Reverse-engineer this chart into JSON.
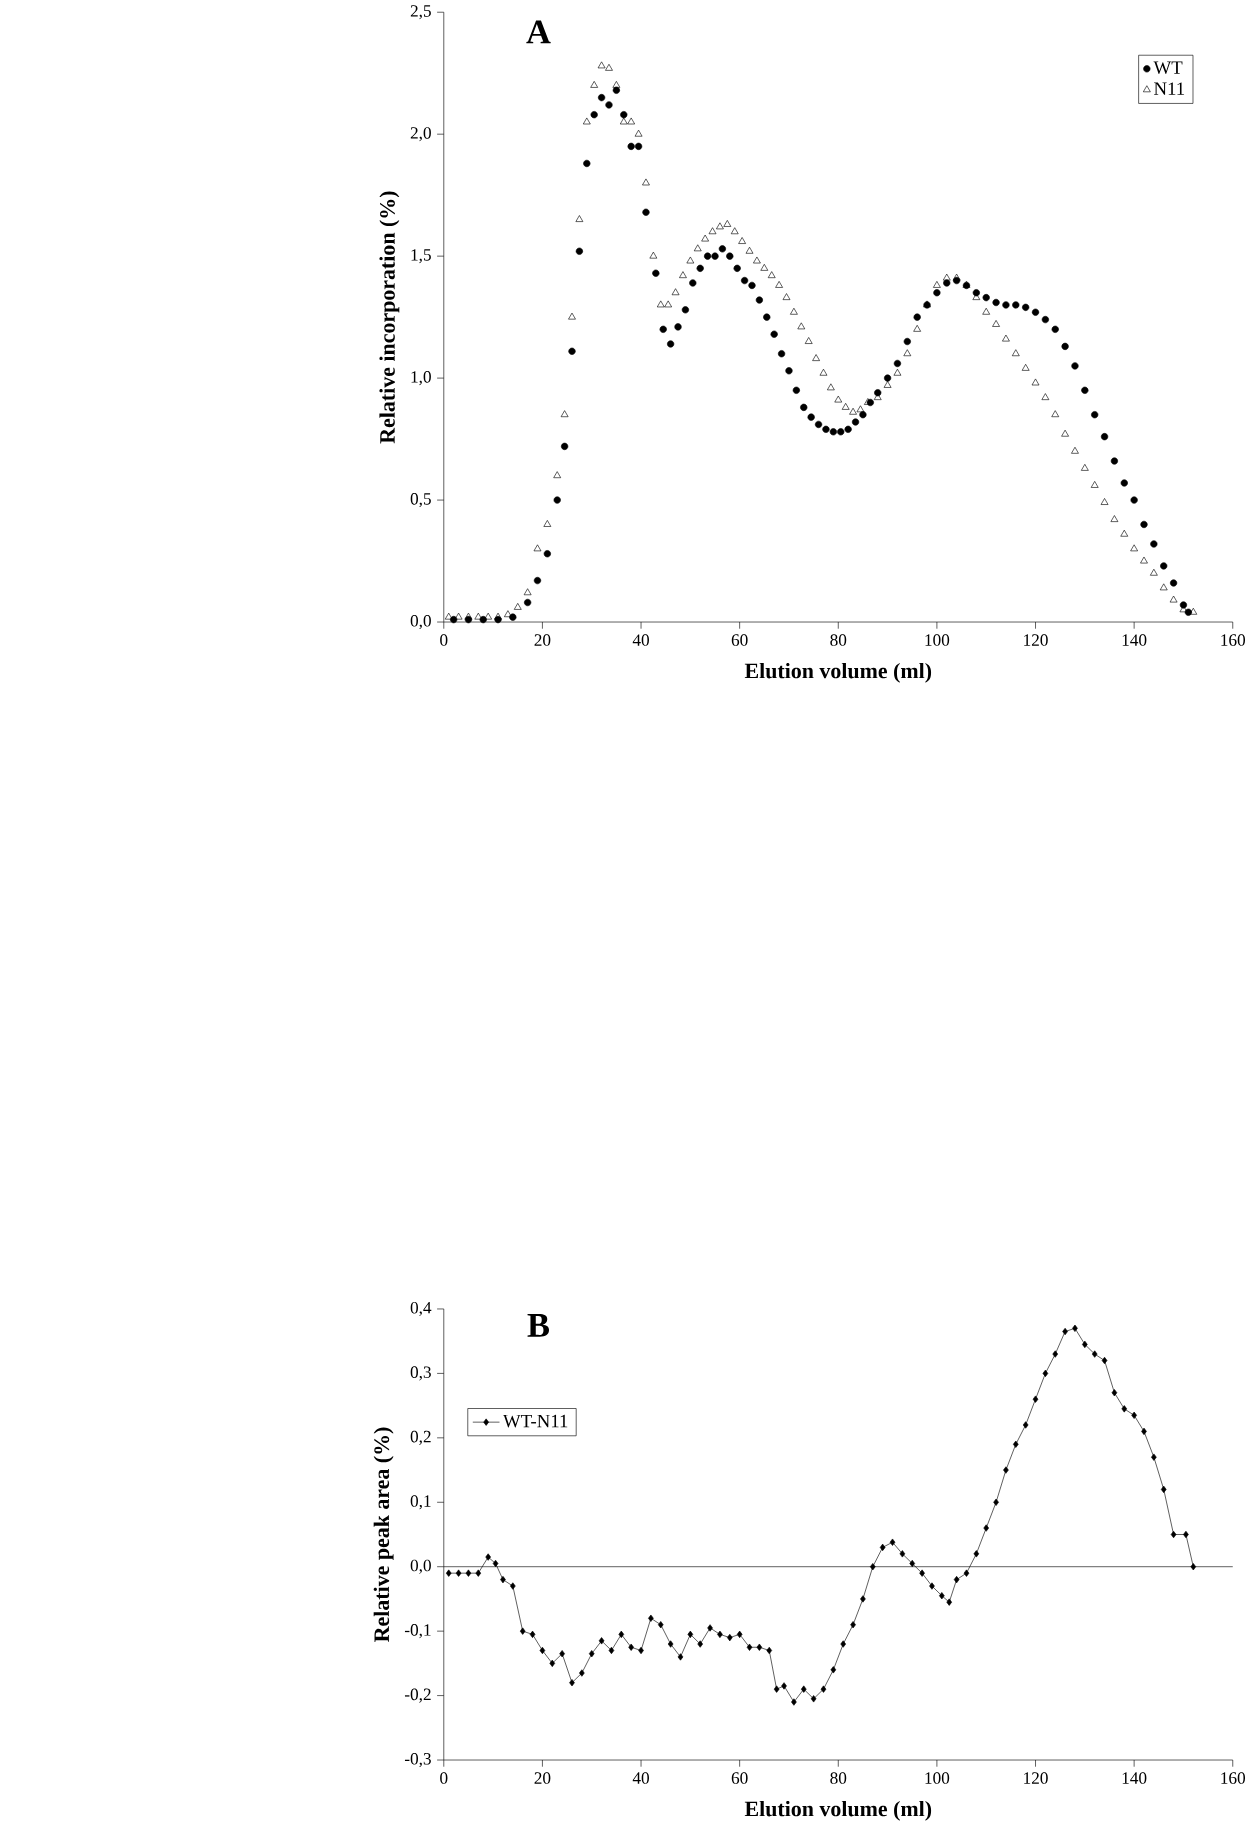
{
  "chart_data": [
    {
      "type": "scatter",
      "title": "A",
      "xlabel": "Elution volume (ml)",
      "ylabel": "Relative incorporation (%)",
      "xlim": [
        0,
        160
      ],
      "xticks": [
        0,
        20,
        40,
        60,
        80,
        100,
        120,
        140,
        160
      ],
      "ylim": [
        0,
        2.5
      ],
      "yticks": [
        {
          "value": 0,
          "label": "0,0"
        },
        {
          "value": 0.5,
          "label": "0,5"
        },
        {
          "value": 1,
          "label": "1,0"
        },
        {
          "value": 1.5,
          "label": "1,5"
        },
        {
          "value": 2,
          "label": "2,0"
        },
        {
          "value": 2.5,
          "label": "2,5"
        }
      ],
      "legend": "top right",
      "series": [
        {
          "name": "WT",
          "color": "#000000",
          "marker": "circle",
          "x": [
            2,
            5,
            8,
            11,
            14,
            17,
            19,
            21,
            23,
            24.5,
            26,
            27.5,
            29,
            30.5,
            32,
            33.5,
            35,
            36.5,
            38,
            39.5,
            41,
            43,
            44.5,
            46,
            47.5,
            49,
            50.5,
            52,
            53.5,
            55,
            56.5,
            58,
            59.5,
            61,
            62.5,
            64,
            65.5,
            67,
            68.5,
            70,
            71.5,
            73,
            74.5,
            76,
            77.5,
            79,
            80.5,
            82,
            83.5,
            85,
            86.5,
            88,
            90,
            92,
            94,
            96,
            98,
            100,
            102,
            104,
            106,
            108,
            110,
            112,
            114,
            116,
            118,
            120,
            122,
            124,
            126,
            128,
            130,
            132,
            134,
            136,
            138,
            140,
            142,
            144,
            146,
            148,
            150,
            151
          ],
          "values": [
            0.01,
            0.01,
            0.01,
            0.01,
            0.02,
            0.08,
            0.17,
            0.28,
            0.5,
            0.72,
            1.11,
            1.52,
            1.88,
            2.08,
            2.15,
            2.12,
            2.18,
            2.08,
            1.95,
            1.95,
            1.68,
            1.43,
            1.2,
            1.14,
            1.21,
            1.28,
            1.39,
            1.45,
            1.5,
            1.5,
            1.53,
            1.5,
            1.45,
            1.4,
            1.38,
            1.32,
            1.25,
            1.18,
            1.1,
            1.03,
            0.95,
            0.88,
            0.84,
            0.81,
            0.79,
            0.78,
            0.78,
            0.79,
            0.82,
            0.85,
            0.9,
            0.94,
            1.0,
            1.06,
            1.15,
            1.25,
            1.3,
            1.35,
            1.39,
            1.4,
            1.38,
            1.35,
            1.33,
            1.31,
            1.3,
            1.3,
            1.29,
            1.27,
            1.24,
            1.2,
            1.13,
            1.05,
            0.95,
            0.85,
            0.76,
            0.66,
            0.57,
            0.5,
            0.4,
            0.32,
            0.23,
            0.16,
            0.07,
            0.04
          ]
        },
        {
          "name": "N11",
          "color": "#000000",
          "marker": "triangle",
          "x": [
            1,
            3,
            5,
            7,
            9,
            11,
            13,
            15,
            17,
            19,
            21,
            23,
            24.5,
            26,
            27.5,
            29,
            30.5,
            32,
            33.5,
            35,
            36.5,
            38,
            39.5,
            41,
            42.5,
            44,
            45.5,
            47,
            48.5,
            50,
            51.5,
            53,
            54.5,
            56,
            57.5,
            59,
            60.5,
            62,
            63.5,
            65,
            66.5,
            68,
            69.5,
            71,
            72.5,
            74,
            75.5,
            77,
            78.5,
            80,
            81.5,
            83,
            84.5,
            86,
            88,
            90,
            92,
            94,
            96,
            98,
            100,
            102,
            104,
            106,
            108,
            110,
            112,
            114,
            116,
            118,
            120,
            122,
            124,
            126,
            128,
            130,
            132,
            134,
            136,
            138,
            140,
            142,
            144,
            146,
            148,
            150,
            152
          ],
          "values": [
            0.02,
            0.02,
            0.02,
            0.02,
            0.02,
            0.02,
            0.03,
            0.06,
            0.12,
            0.3,
            0.4,
            0.6,
            0.85,
            1.25,
            1.65,
            2.05,
            2.2,
            2.28,
            2.27,
            2.2,
            2.05,
            2.05,
            2.0,
            1.8,
            1.5,
            1.3,
            1.3,
            1.35,
            1.42,
            1.48,
            1.53,
            1.57,
            1.6,
            1.62,
            1.63,
            1.6,
            1.56,
            1.52,
            1.48,
            1.45,
            1.42,
            1.38,
            1.33,
            1.27,
            1.21,
            1.15,
            1.08,
            1.02,
            0.96,
            0.91,
            0.88,
            0.86,
            0.87,
            0.9,
            0.92,
            0.97,
            1.02,
            1.1,
            1.2,
            1.3,
            1.38,
            1.41,
            1.41,
            1.38,
            1.33,
            1.27,
            1.22,
            1.16,
            1.1,
            1.04,
            0.98,
            0.92,
            0.85,
            0.77,
            0.7,
            0.63,
            0.56,
            0.49,
            0.42,
            0.36,
            0.3,
            0.25,
            0.2,
            0.14,
            0.09,
            0.05,
            0.04
          ]
        }
      ]
    },
    {
      "type": "line",
      "title": "B",
      "xlabel": "Elution volume (ml)",
      "ylabel": "Relative peak area (%)",
      "xlim": [
        0,
        160
      ],
      "xticks": [
        0,
        20,
        40,
        60,
        80,
        100,
        120,
        140,
        160
      ],
      "ylim": [
        -0.3,
        0.4
      ],
      "yticks": [
        {
          "value": -0.3,
          "label": "-0,3"
        },
        {
          "value": -0.2,
          "label": "-0,2"
        },
        {
          "value": -0.1,
          "label": "-0,1"
        },
        {
          "value": 0,
          "label": "0,0"
        },
        {
          "value": 0.1,
          "label": "0,1"
        },
        {
          "value": 0.2,
          "label": "0,2"
        },
        {
          "value": 0.3,
          "label": "0,3"
        },
        {
          "value": 0.4,
          "label": "0,4"
        }
      ],
      "legend": "top left",
      "marker": "diamond",
      "line_style": "solid",
      "ref_lines": [
        {
          "axis": "y",
          "value": 0,
          "color": "#000000"
        }
      ],
      "series": [
        {
          "name": "WT-N11",
          "color": "#000000",
          "x": [
            1,
            3,
            5,
            7,
            9,
            10.5,
            12,
            14,
            16,
            18,
            20,
            22,
            24,
            26,
            28,
            30,
            32,
            34,
            36,
            38,
            40,
            42,
            44,
            46,
            48,
            50,
            52,
            54,
            56,
            58,
            60,
            62,
            64,
            66,
            67.5,
            69,
            71,
            73,
            75,
            77,
            79,
            81,
            83,
            85,
            87,
            89,
            91,
            93,
            95,
            97,
            99,
            101,
            102.5,
            104,
            106,
            108,
            110,
            112,
            114,
            116,
            118,
            120,
            122,
            124,
            126,
            128,
            130,
            132,
            134,
            136,
            138,
            140,
            142,
            144,
            146,
            148,
            150.5,
            152
          ],
          "values": [
            -0.01,
            -0.01,
            -0.01,
            -0.01,
            0.015,
            0.005,
            -0.02,
            -0.03,
            -0.1,
            -0.105,
            -0.13,
            -0.15,
            -0.135,
            -0.18,
            -0.165,
            -0.135,
            -0.115,
            -0.13,
            -0.105,
            -0.125,
            -0.13,
            -0.08,
            -0.09,
            -0.12,
            -0.14,
            -0.105,
            -0.12,
            -0.095,
            -0.105,
            -0.11,
            -0.105,
            -0.125,
            -0.125,
            -0.13,
            -0.19,
            -0.185,
            -0.21,
            -0.19,
            -0.205,
            -0.19,
            -0.16,
            -0.12,
            -0.09,
            -0.05,
            0.0,
            0.03,
            0.038,
            0.02,
            0.005,
            -0.01,
            -0.03,
            -0.045,
            -0.055,
            -0.02,
            -0.01,
            0.02,
            0.06,
            0.1,
            0.15,
            0.19,
            0.22,
            0.26,
            0.3,
            0.33,
            0.365,
            0.37,
            0.345,
            0.33,
            0.32,
            0.27,
            0.245,
            0.235,
            0.21,
            0.17,
            0.12,
            0.05,
            0.05,
            0.0
          ]
        }
      ]
    }
  ]
}
